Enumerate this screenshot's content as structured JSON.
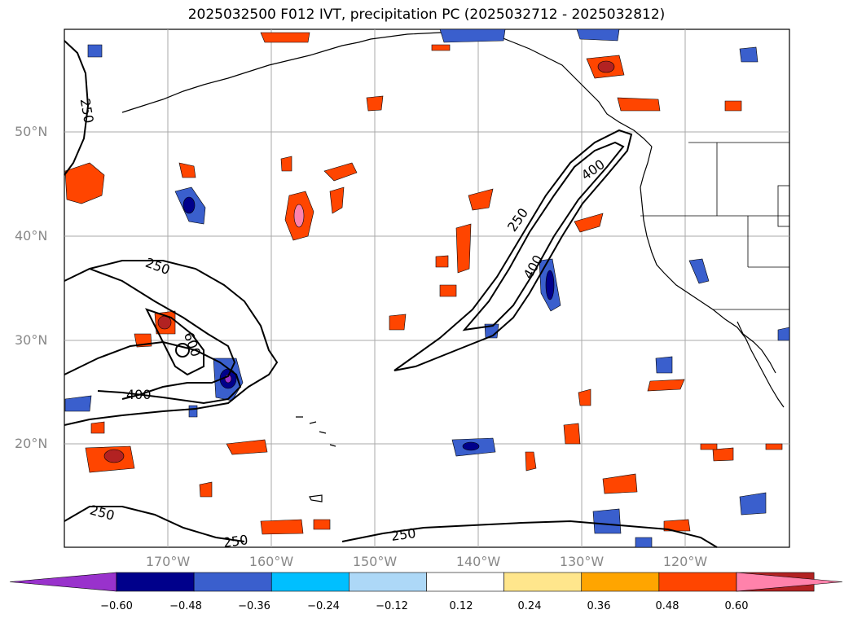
{
  "title": "2025032500 F012 IVT, precipitation PC (2025032712 - 2025032812)",
  "lat_labels": [
    "50°N",
    "40°N",
    "30°N",
    "20°N"
  ],
  "lon_labels": [
    "170°W",
    "160°W",
    "150°W",
    "140°W",
    "130°W",
    "120°W"
  ],
  "contour_labels": [
    "250",
    "250",
    "250",
    "250",
    "250",
    "250",
    "400",
    "400",
    "400",
    "600"
  ],
  "colorbar": {
    "ticks": [
      "−0.60",
      "−0.48",
      "−0.36",
      "−0.24",
      "−0.12",
      "0.12",
      "0.24",
      "0.36",
      "0.48",
      "0.60"
    ],
    "colors": [
      "#9932cc",
      "#00008b",
      "#3a5fcd",
      "#00bfff",
      "#add8f7",
      "#ffffff",
      "#ffe68c",
      "#ffa500",
      "#ff4500",
      "#b22222",
      "#ff82ab"
    ]
  },
  "map_colors": {
    "ocean": "#ffffff",
    "coast": "#000000",
    "grid": "#aaaaaa",
    "contour": "#000000"
  }
}
